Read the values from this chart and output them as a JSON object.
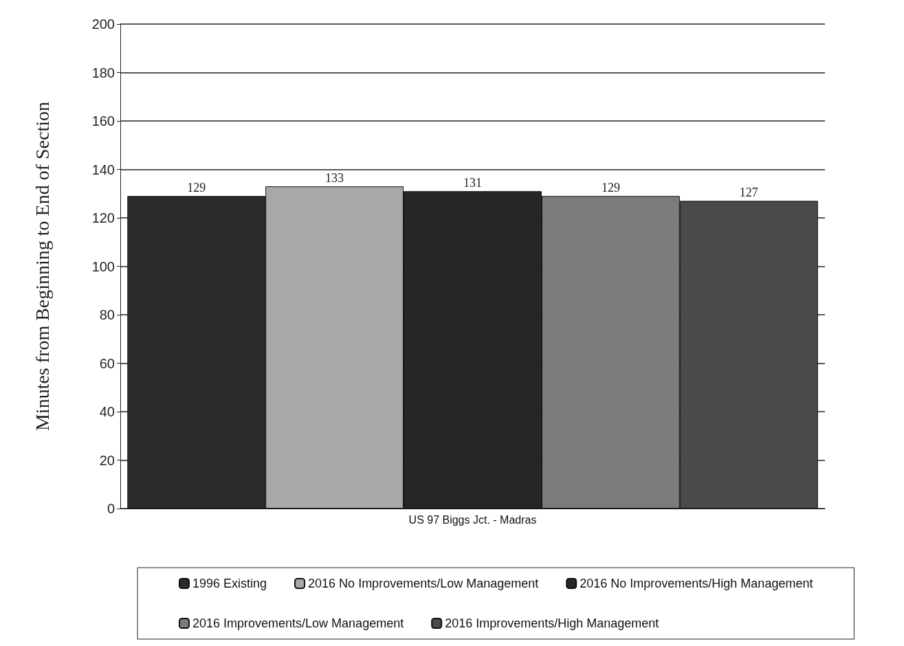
{
  "chart_data": {
    "type": "bar",
    "ylabel": "Minutes from Beginning to End of Section",
    "categories": [
      "US 97 Biggs Jct. - Madras"
    ],
    "series": [
      {
        "name": "1996 Existing",
        "color": "#2b2b2b",
        "values": [
          129
        ]
      },
      {
        "name": "2016 No Improvements/Low Management",
        "color": "#a8a8a8",
        "values": [
          133
        ]
      },
      {
        "name": "2016 No Improvements/High Management",
        "color": "#262626",
        "values": [
          131
        ]
      },
      {
        "name": "2016 Improvements/Low Management",
        "color": "#7c7c7c",
        "values": [
          129
        ]
      },
      {
        "name": "2016 Improvements/High Management",
        "color": "#4a4a4a",
        "values": [
          127
        ]
      }
    ],
    "ylim": [
      0,
      200
    ],
    "yticks": [
      0,
      20,
      40,
      60,
      80,
      100,
      120,
      140,
      160,
      180,
      200
    ],
    "grid": "y",
    "legend": "bottom",
    "data_labels": true
  }
}
